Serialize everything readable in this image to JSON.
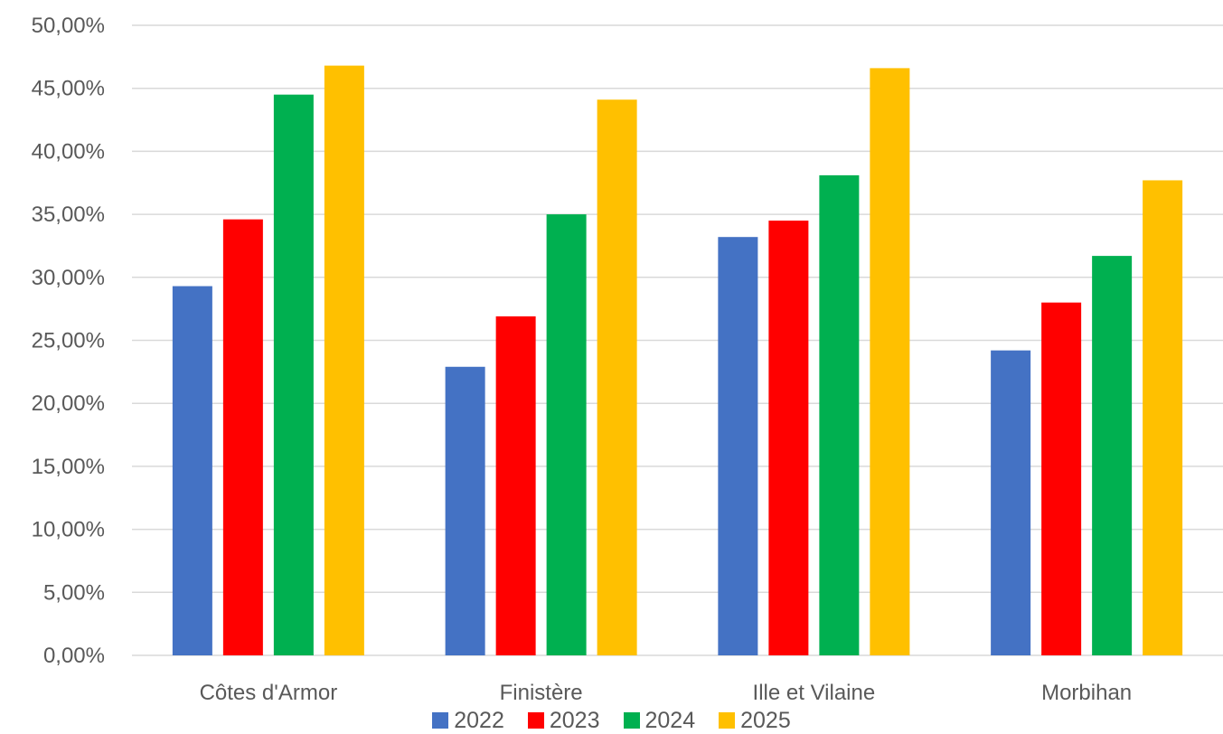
{
  "chart_data": {
    "type": "bar",
    "title": "",
    "xlabel": "",
    "ylabel": "",
    "categories": [
      "Côtes d'Armor",
      "Finistère",
      "Ille et Vilaine",
      "Morbihan"
    ],
    "series": [
      {
        "name": "2022",
        "color": "#4472C4",
        "values": [
          29.3,
          22.9,
          33.2,
          24.2
        ]
      },
      {
        "name": "2023",
        "color": "#FF0000",
        "values": [
          34.6,
          26.9,
          34.5,
          28.0
        ]
      },
      {
        "name": "2024",
        "color": "#00B050",
        "values": [
          44.5,
          35.0,
          38.1,
          31.7
        ]
      },
      {
        "name": "2025",
        "color": "#FFC000",
        "values": [
          46.8,
          44.1,
          46.6,
          37.7
        ]
      }
    ],
    "ylim": [
      0,
      50
    ],
    "yticks": [
      0,
      5,
      10,
      15,
      20,
      25,
      30,
      35,
      40,
      45,
      50
    ],
    "ytick_labels": [
      "0,00%",
      "5,00%",
      "10,00%",
      "15,00%",
      "20,00%",
      "25,00%",
      "30,00%",
      "35,00%",
      "40,00%",
      "45,00%",
      "50,00%"
    ],
    "grid": true,
    "legend_position": "bottom"
  }
}
